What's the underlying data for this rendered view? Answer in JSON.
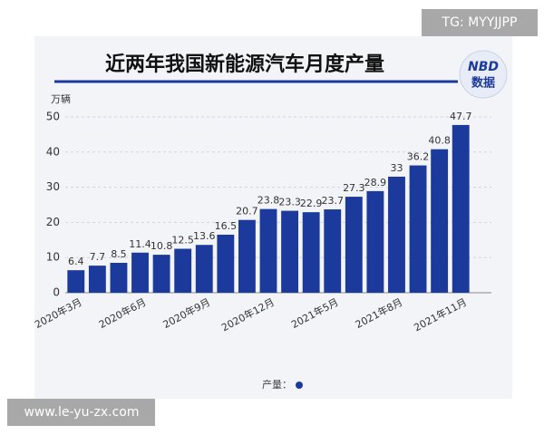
{
  "chart_data": {
    "type": "bar",
    "title": "近两年我国新能源汽车月度产量",
    "y_unit": "万辆",
    "categories": [
      "2020年3月",
      null,
      null,
      "2020年6月",
      null,
      null,
      "2020年9月",
      null,
      null,
      "2020年12月",
      null,
      null,
      "2021年5月",
      null,
      null,
      "2021年8月",
      null,
      null,
      "2021年11月"
    ],
    "series": [
      {
        "name": "产量：",
        "color": "#1c3a9c",
        "values": [
          6.4,
          7.7,
          8.5,
          11.4,
          10.8,
          12.5,
          13.6,
          16.5,
          20.7,
          23.8,
          23.3,
          22.9,
          23.7,
          27.3,
          28.9,
          33,
          36.2,
          40.8,
          47.7
        ]
      }
    ],
    "ylim": [
      0,
      50
    ],
    "yticks": [
      0,
      10,
      20,
      30,
      40,
      50
    ],
    "grid": true,
    "legend": "bottom"
  },
  "logo": {
    "brand": "NBD",
    "caption": "数据"
  },
  "watermarks": {
    "top_right": "TG: MYYJJPP",
    "bottom_left": "www.le-yu-zx.com"
  }
}
